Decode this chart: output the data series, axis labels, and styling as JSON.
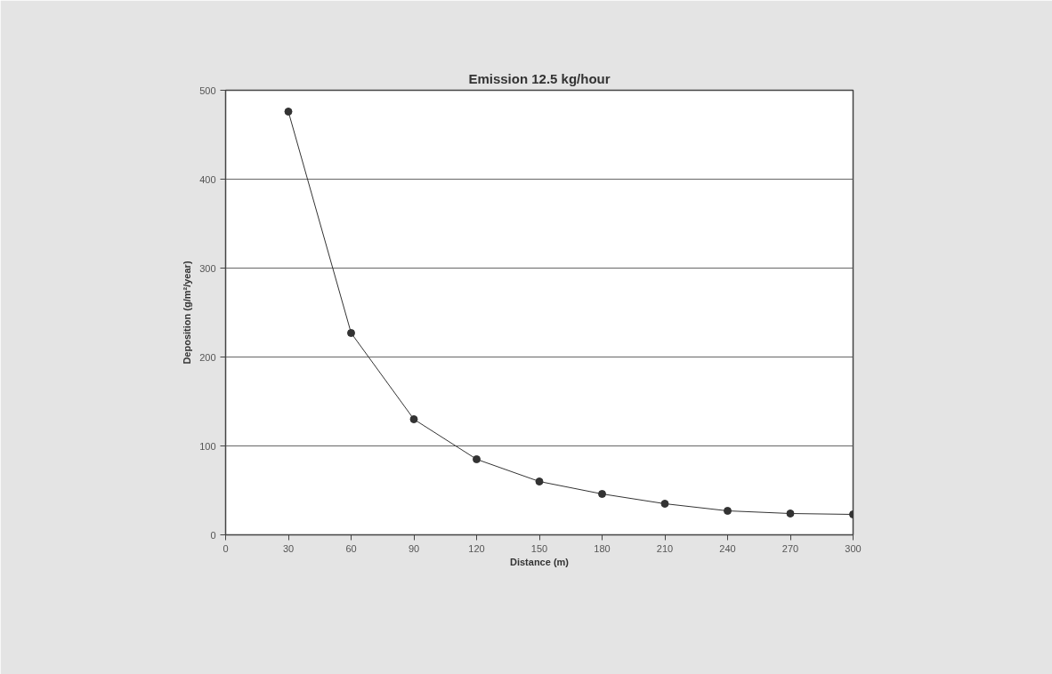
{
  "chart_data": {
    "type": "line",
    "title": "Emission 12.5 kg/hour",
    "xlabel": "Distance (m)",
    "ylabel": "Deposition (g/m²/year)",
    "x": [
      30,
      60,
      90,
      120,
      150,
      180,
      210,
      240,
      270,
      300
    ],
    "series": [
      {
        "color": "#333333",
        "values": [
          476,
          227,
          130,
          85,
          60,
          46,
          35,
          27,
          24,
          23
        ]
      }
    ],
    "xlim": [
      0,
      300
    ],
    "xticks": [
      0,
      30,
      60,
      90,
      120,
      150,
      180,
      210,
      240,
      270,
      300
    ],
    "ylim": [
      0,
      500
    ],
    "yticks": [
      0,
      100,
      200,
      300,
      400,
      500
    ],
    "grid": "y",
    "marker": "circle",
    "line_style": "solid"
  }
}
